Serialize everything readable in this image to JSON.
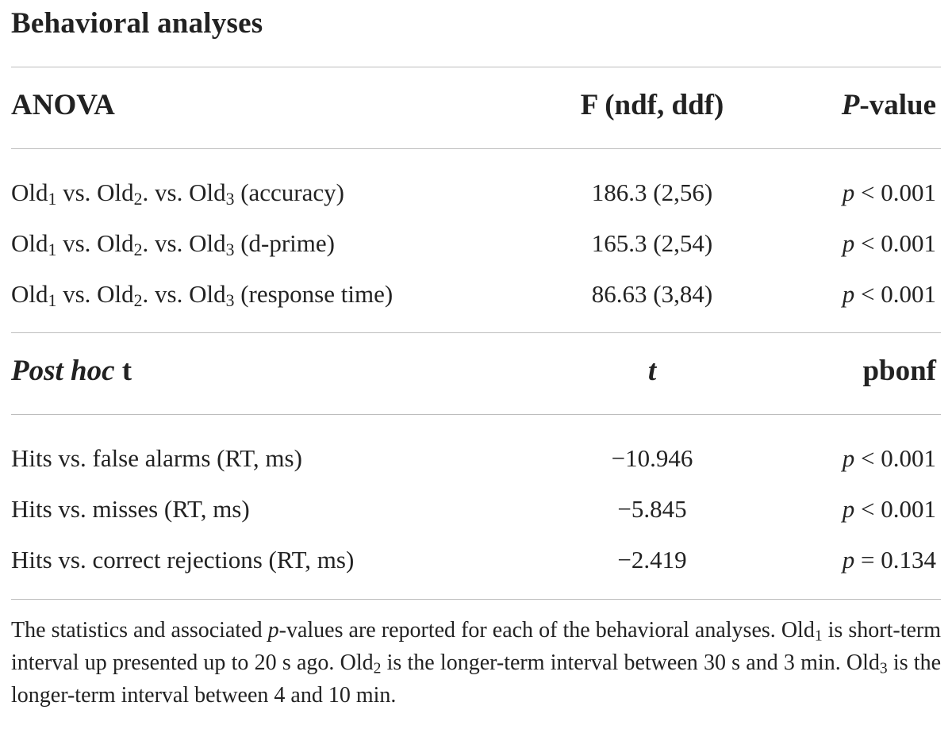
{
  "title": "Behavioral analyses",
  "anova": {
    "header": {
      "col1": "ANOVA",
      "col2": "F (ndf, ddf)",
      "col3_italic": "P",
      "col3_rest": "-value"
    },
    "rows": [
      {
        "label_suffix": "(accuracy)",
        "value": "186.3 (2,56)",
        "p_sym": "p",
        "p_rest": " < 0.001"
      },
      {
        "label_suffix": "(d-prime)",
        "value": "165.3 (2,54)",
        "p_sym": "p",
        "p_rest": " < 0.001"
      },
      {
        "label_suffix": "(response time)",
        "value": "86.63 (3,84)",
        "p_sym": "p",
        "p_rest": " < 0.001"
      }
    ]
  },
  "old_label": {
    "word": "Old",
    "sub1": "1",
    "sub2": "2",
    "sub3": "3",
    "vs1": " vs. ",
    "vs2": ". vs. "
  },
  "posthoc": {
    "header": {
      "col1_italic": "Post hoc",
      "col1_rest": " t",
      "col2": "t",
      "col3": "pbonf"
    },
    "rows": [
      {
        "label": "Hits vs. false alarms (RT, ms)",
        "value": "−10.946",
        "p_sym": "p",
        "p_rest": " < 0.001"
      },
      {
        "label": "Hits vs. misses (RT, ms)",
        "value": "−5.845",
        "p_sym": "p",
        "p_rest": " < 0.001"
      },
      {
        "label": "Hits vs. correct rejections (RT, ms)",
        "value": "−2.419",
        "p_sym": "p",
        "p_rest": " = 0.134"
      }
    ]
  },
  "footnote": {
    "part1": "The statistics and associated ",
    "p_italic": "p",
    "part2": "-values are reported for each of the behavioral analyses. ",
    "old": "Old",
    "s1": "1",
    "part3": " is short-term interval up presented up to 20 s ago. ",
    "s2": "2",
    "part4": " is the longer-term interval between 30 s and 3 min. ",
    "s3": "3",
    "part5": " is the longer-term interval between 4 and 10 min."
  }
}
